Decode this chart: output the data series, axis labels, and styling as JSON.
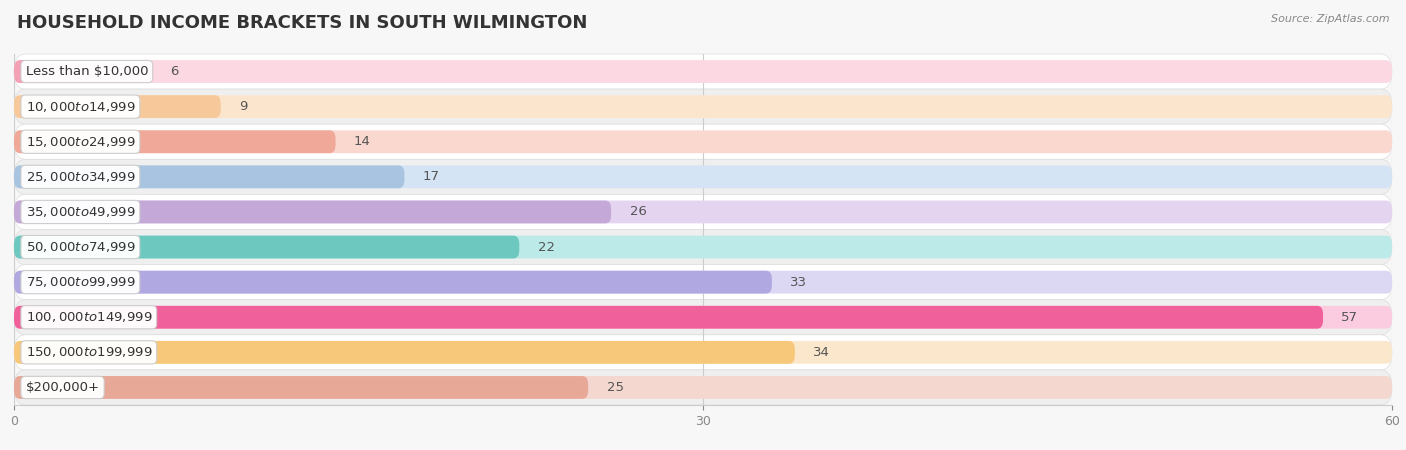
{
  "title": "HOUSEHOLD INCOME BRACKETS IN SOUTH WILMINGTON",
  "source": "Source: ZipAtlas.com",
  "categories": [
    "Less than $10,000",
    "$10,000 to $14,999",
    "$15,000 to $24,999",
    "$25,000 to $34,999",
    "$35,000 to $49,999",
    "$50,000 to $74,999",
    "$75,000 to $99,999",
    "$100,000 to $149,999",
    "$150,000 to $199,999",
    "$200,000+"
  ],
  "values": [
    6,
    9,
    14,
    17,
    26,
    22,
    33,
    57,
    34,
    25
  ],
  "bar_colors": [
    "#F4A0B5",
    "#F7C99A",
    "#F0A898",
    "#A8C4E0",
    "#C4A8D8",
    "#6DC8C0",
    "#B0A8E0",
    "#F0609A",
    "#F7C87A",
    "#E8A898"
  ],
  "bg_bar_colors": [
    "#FBD8E2",
    "#FBE5CC",
    "#FAD8D0",
    "#D4E4F4",
    "#E4D4F0",
    "#BCEAE8",
    "#DCD8F4",
    "#FBCCE0",
    "#FBE8CC",
    "#F4D8D0"
  ],
  "background_color": "#f7f7f7",
  "row_bg_even": "#ffffff",
  "row_bg_odd": "#efefef",
  "xlim": [
    0,
    60
  ],
  "xticks": [
    0,
    30,
    60
  ],
  "title_fontsize": 13,
  "label_fontsize": 9.5,
  "value_fontsize": 9.5
}
